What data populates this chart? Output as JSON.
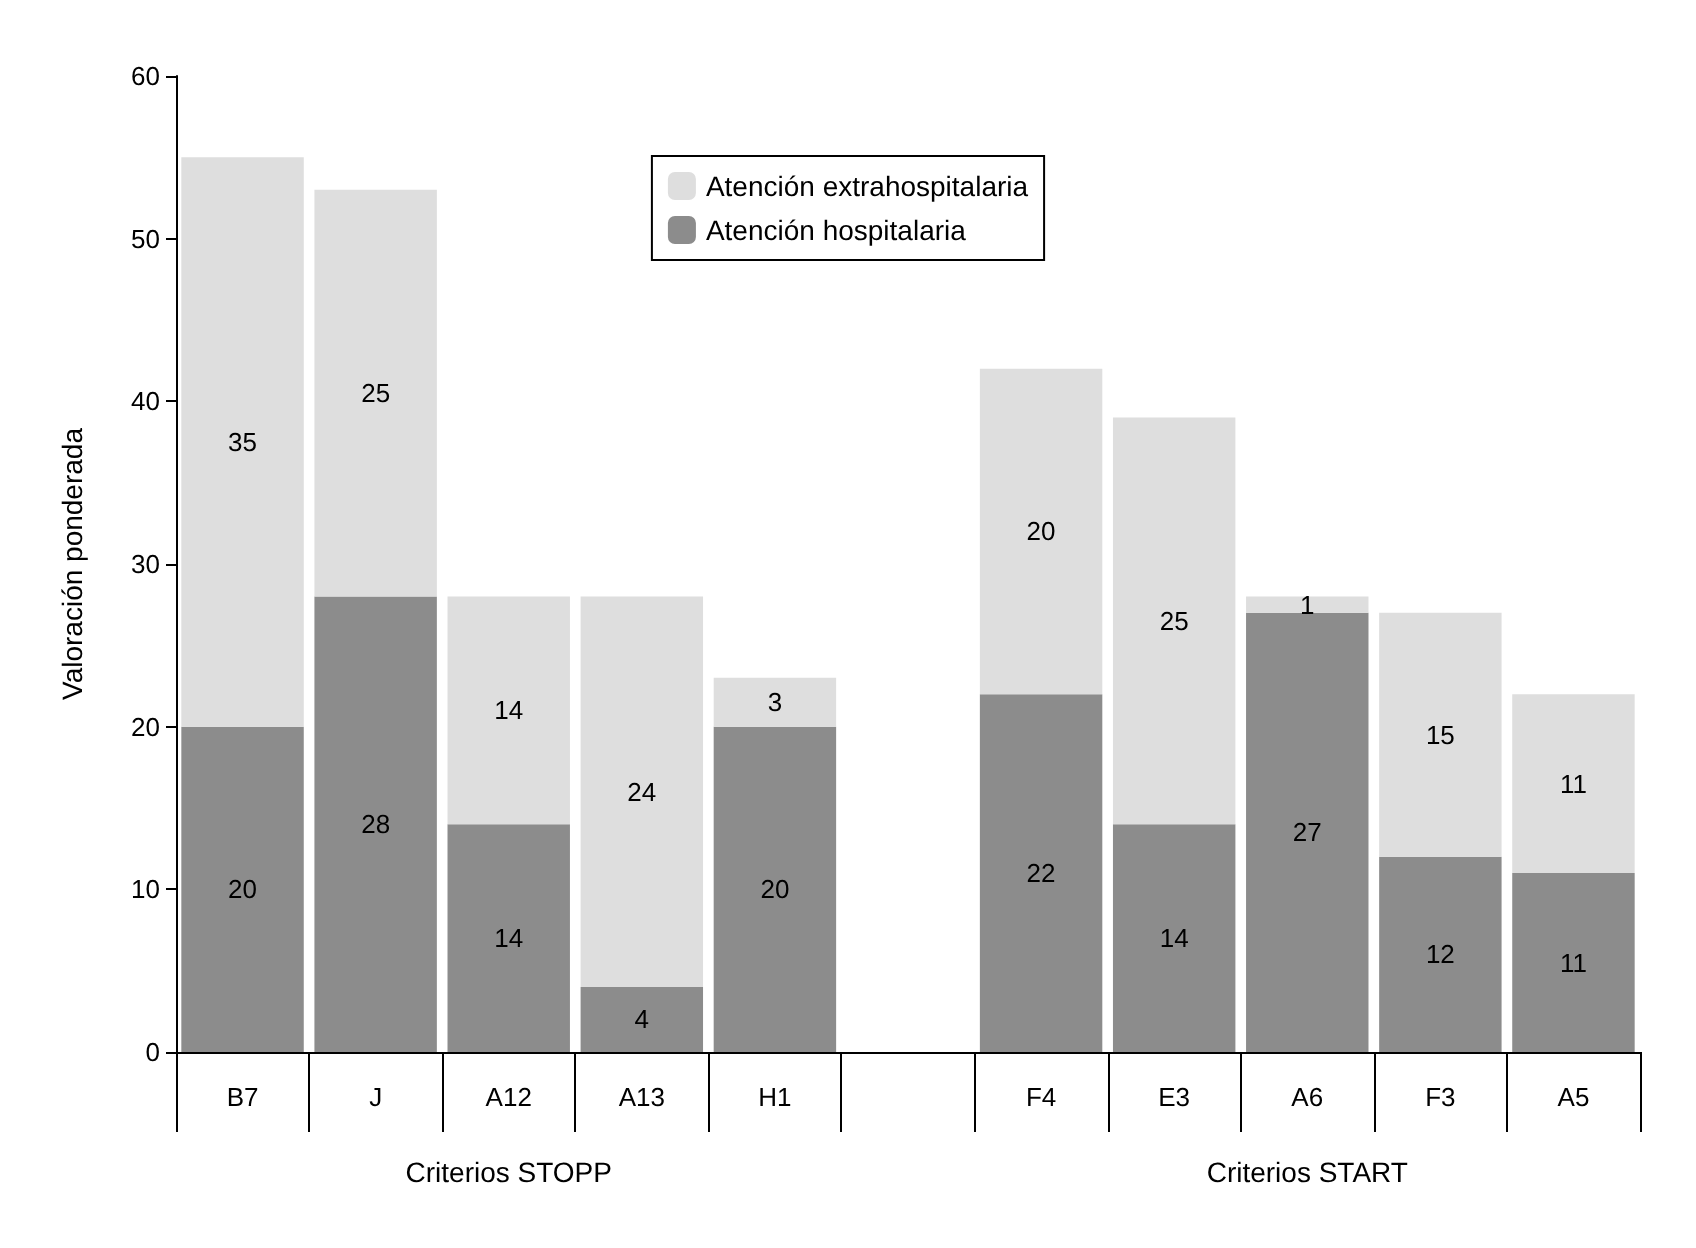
{
  "chart_data": {
    "type": "bar",
    "stacked": true,
    "ylabel": "Valoración ponderada",
    "categories": [
      "B7",
      "J",
      "A12",
      "A13",
      "H1",
      null,
      "F4",
      "E3",
      "A6",
      "F3",
      "A5"
    ],
    "series": [
      {
        "name": "Atención hospitalaria",
        "color": "#8c8c8c",
        "values": [
          20,
          28,
          14,
          4,
          20,
          null,
          22,
          14,
          27,
          12,
          11
        ]
      },
      {
        "name": "Atención extrahospitalaria",
        "color": "#dedede",
        "values": [
          35,
          25,
          14,
          24,
          3,
          null,
          20,
          25,
          1,
          15,
          11
        ]
      }
    ],
    "ylim": [
      0,
      60
    ],
    "yticks": [
      0,
      10,
      20,
      30,
      40,
      50,
      60
    ],
    "grid": false,
    "legend": "top",
    "data_labels": true,
    "annotations": [
      "Criterios STOPP",
      "Criterios START"
    ]
  }
}
